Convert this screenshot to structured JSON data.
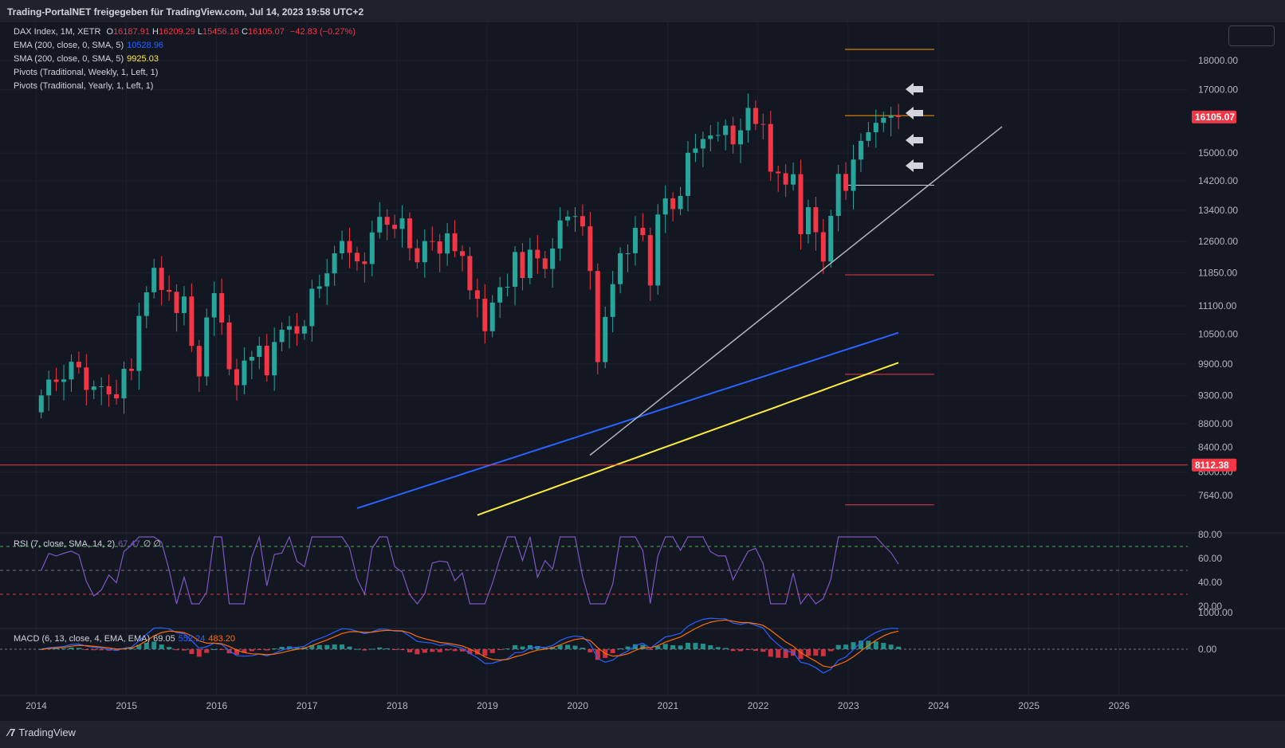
{
  "header": {
    "publisher": "Trading-PortalNET freigegeben für TradingView.com, Jul 14, 2023 19:58 UTC+2"
  },
  "legend": {
    "main_title": "DAX Index, 1M, XETR",
    "o_label": "O",
    "o_value": "16187.91",
    "h_label": "H",
    "h_value": "16209.29",
    "l_label": "L",
    "l_value": "15456.16",
    "c_label": "C",
    "c_value": "16105.07",
    "change": "−42.83 (−0.27%)",
    "ema_label": "EMA (200, close, 0, SMA, 5)",
    "ema_value": "10528.96",
    "sma_label": "SMA (200, close, 0, SMA, 5)",
    "sma_value": "9925.03",
    "pivots_weekly": "Pivots (Traditional, Weekly, 1, Left, 1)",
    "pivots_yearly": "Pivots (Traditional, Yearly, 1, Left, 1)"
  },
  "rsi_legend": {
    "label": "RSI (7, close, SMA, 14, 2)",
    "value": "67.47",
    "extra": "∅ ∅"
  },
  "macd_legend": {
    "label": "MACD (6, 13, close, 4, EMA, EMA)",
    "hist": "69.05",
    "macd": "552.24",
    "signal": "483.20"
  },
  "footer": {
    "logo_text": "TradingView"
  },
  "colors": {
    "bg": "#131722",
    "up": "#26a69a",
    "down": "#f23645",
    "ema": "#2962ff",
    "sma": "#ffeb3b",
    "rsi": "#7e57c2",
    "macd": "#2962ff",
    "signal": "#ff6d00",
    "pivot_orange": "#ff9800",
    "pivot_red": "#f23645"
  },
  "chart_data": [
    {
      "type": "candlestick",
      "title": "DAX Index, 1M, XETR",
      "x_ticks": [
        "2014",
        "2015",
        "2016",
        "2017",
        "2018",
        "2019",
        "2020",
        "2021",
        "2022",
        "2023",
        "2024",
        "2025",
        "2026"
      ],
      "y_ticks": [
        "18000.00",
        "17000.00",
        "15000.00",
        "14200.00",
        "13400.00",
        "12600.00",
        "11850.00",
        "11100.00",
        "10500.00",
        "9900.00",
        "9300.00",
        "8800.00",
        "8400.00",
        "8000.00",
        "7640.00"
      ],
      "last_price_label": "16105.07",
      "horizontal_level_label": "8112.38",
      "horizontal_level": 8112.38,
      "ema_last": 10528.96,
      "sma_last": 9925.03,
      "closes": [
        9306,
        9600,
        9556,
        9603,
        9943,
        9833,
        9407,
        9470,
        9474,
        9326,
        9251,
        9806,
        9765,
        10883,
        11402,
        11966,
        11454,
        11413,
        10945,
        11308,
        10259,
        9660,
        10850,
        11382,
        10743,
        9798,
        9495,
        9965,
        10039,
        10262,
        9680,
        10337,
        10592,
        10665,
        10511,
        10665,
        11481,
        11535,
        11834,
        12312,
        12615,
        12325,
        12118,
        12055,
        12829,
        13230,
        13024,
        12918,
        13189,
        12436,
        12097,
        12612,
        12604,
        12306,
        12806,
        12364,
        12247,
        11447,
        11257,
        10559,
        11173,
        11516,
        11526,
        12344,
        11727,
        12399,
        12189,
        11939,
        12428,
        13136,
        13236,
        13249,
        12982,
        11890,
        9936,
        10862,
        11587,
        12311,
        12313,
        12945,
        12761,
        11556,
        13291,
        13719,
        13433,
        13786,
        15008,
        15136,
        15421,
        15531,
        15544,
        15835,
        15260,
        15688,
        16396,
        15885,
        15884,
        14461,
        14415,
        14097,
        14388,
        12784,
        13484,
        12835,
        12114,
        13254,
        14397,
        13924,
        14810,
        15365,
        15629,
        15922,
        16081,
        16148,
        16105
      ],
      "ema200": [
        7450,
        10528.96
      ],
      "sma200": [
        7350,
        9925.03
      ]
    },
    {
      "type": "line",
      "title": "RSI (7, close, SMA, 14, 2)",
      "y_ticks": [
        "80.00",
        "60.00",
        "40.00",
        "20.00"
      ],
      "last_value": 67.47,
      "bands": [
        70,
        50,
        30
      ]
    },
    {
      "type": "bar",
      "title": "MACD (6, 13, close, 4, EMA, EMA)",
      "y_ticks": [
        "1000.00",
        "0.00"
      ],
      "histogram_last": 69.05,
      "macd_last": 552.24,
      "signal_last": 483.2
    }
  ]
}
